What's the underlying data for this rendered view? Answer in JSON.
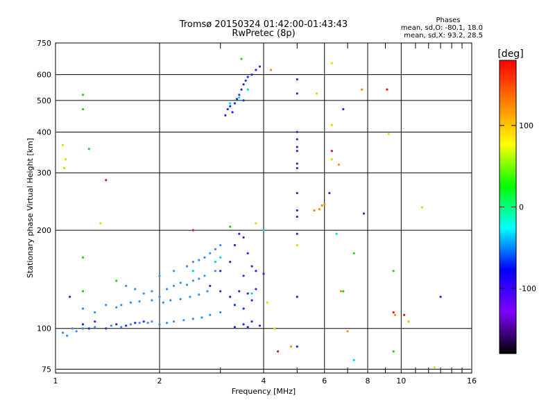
{
  "chart_data": {
    "type": "scatter",
    "title": "Tromsø 20150324 01:42:00-01:43:43",
    "subtitle": "RwPretec (8p)",
    "xlabel": "Frequency [MHz]",
    "ylabel": "Stationary phase Virtual Height [km]",
    "x_scale": "log2",
    "y_scale": "log",
    "xlim": [
      1,
      16
    ],
    "ylim": [
      73,
      750
    ],
    "x_ticks": [
      1,
      2,
      4,
      6,
      8,
      10,
      16
    ],
    "x_minor_ticks": [
      3,
      5,
      7,
      9,
      11,
      12,
      13,
      14,
      15
    ],
    "y_ticks": [
      75,
      100,
      200,
      300,
      400,
      500,
      600,
      750
    ],
    "grid": true,
    "legend": {
      "header": "Phases",
      "line1": "mean, sd,O: -80.1, 18.0",
      "line2": "mean, sd,X:  93.2, 28.5"
    },
    "colorbar": {
      "label": "[deg]",
      "range": [
        -180,
        180
      ],
      "ticks": [
        100,
        0,
        -100
      ],
      "colors": [
        "#ff0000",
        "#ff7f00",
        "#ffff00",
        "#00ff00",
        "#00ffff",
        "#0000ff",
        "#7f00ff",
        "#000000"
      ]
    },
    "series": [
      {
        "color_group": "blue",
        "color": "#1a2cf0",
        "points": [
          [
            3.1,
            450
          ],
          [
            3.15,
            470
          ],
          [
            3.2,
            480
          ],
          [
            3.3,
            490
          ],
          [
            3.35,
            505
          ],
          [
            3.4,
            520
          ],
          [
            3.45,
            540
          ],
          [
            3.5,
            560
          ],
          [
            3.55,
            575
          ],
          [
            3.6,
            590
          ],
          [
            3.7,
            600
          ],
          [
            3.8,
            620
          ],
          [
            3.9,
            635
          ],
          [
            3.25,
            460
          ],
          [
            3.5,
            500
          ],
          [
            5,
            580
          ],
          [
            5,
            525
          ],
          [
            5,
            400
          ],
          [
            5,
            380
          ],
          [
            5,
            360
          ],
          [
            5,
            350
          ],
          [
            5,
            320
          ],
          [
            5,
            310
          ],
          [
            5,
            260
          ],
          [
            5,
            230
          ],
          [
            5,
            220
          ],
          [
            5,
            195
          ],
          [
            5,
            125
          ],
          [
            5,
            88
          ],
          [
            6.2,
            260
          ],
          [
            6.8,
            470
          ],
          [
            7.8,
            225
          ],
          [
            10.5,
            105
          ],
          [
            13,
            125
          ],
          [
            3.4,
            195
          ],
          [
            3.5,
            190
          ],
          [
            3.3,
            180
          ],
          [
            3.6,
            170
          ],
          [
            3.0,
            150
          ],
          [
            3.7,
            155
          ],
          [
            3.2,
            160
          ],
          [
            3.5,
            145
          ],
          [
            3.8,
            150
          ],
          [
            4.0,
            147
          ],
          [
            2.8,
            135
          ],
          [
            3.0,
            130
          ],
          [
            3.2,
            125
          ],
          [
            3.4,
            130
          ],
          [
            3.6,
            128
          ],
          [
            3.8,
            132
          ],
          [
            3.3,
            118
          ],
          [
            3.5,
            115
          ],
          [
            3.7,
            122
          ],
          [
            3.3,
            101
          ],
          [
            3.5,
            103
          ],
          [
            3.7,
            105
          ],
          [
            3.9,
            102
          ],
          [
            3.6,
            101
          ],
          [
            1.1,
            125
          ],
          [
            1.2,
            103
          ],
          [
            1.25,
            100
          ],
          [
            1.3,
            105
          ],
          [
            1.4,
            100
          ],
          [
            1.5,
            103
          ],
          [
            1.6,
            102
          ],
          [
            1.7,
            104
          ],
          [
            1.8,
            105
          ]
        ]
      },
      {
        "color_group": "lightblue",
        "color": "#3a8cf5",
        "points": [
          [
            1.05,
            97
          ],
          [
            1.08,
            95
          ],
          [
            1.12,
            100
          ],
          [
            1.15,
            98
          ],
          [
            1.2,
            100
          ],
          [
            1.3,
            101
          ],
          [
            1.45,
            102
          ],
          [
            1.55,
            101
          ],
          [
            1.65,
            103
          ],
          [
            1.75,
            104
          ],
          [
            1.85,
            104
          ],
          [
            1.9,
            105
          ],
          [
            2.0,
            103
          ],
          [
            2.1,
            104
          ],
          [
            2.2,
            105
          ],
          [
            2.35,
            106
          ],
          [
            2.5,
            107
          ],
          [
            2.65,
            108
          ],
          [
            2.8,
            110
          ],
          [
            3.0,
            112
          ],
          [
            1.6,
            135
          ],
          [
            1.7,
            132
          ],
          [
            1.8,
            128
          ],
          [
            1.9,
            130
          ],
          [
            2.0,
            125
          ],
          [
            2.1,
            132
          ],
          [
            2.2,
            135
          ],
          [
            2.3,
            138
          ],
          [
            2.4,
            136
          ],
          [
            2.5,
            140
          ],
          [
            2.6,
            142
          ],
          [
            2.7,
            145
          ],
          [
            2.9,
            150
          ],
          [
            1.55,
            118
          ],
          [
            1.65,
            120
          ],
          [
            1.75,
            121
          ],
          [
            1.9,
            122
          ],
          [
            2.05,
            120
          ],
          [
            2.15,
            122
          ],
          [
            2.3,
            123
          ],
          [
            2.45,
            125
          ],
          [
            2.6,
            127
          ],
          [
            2.75,
            130
          ],
          [
            1.2,
            115
          ],
          [
            1.3,
            112
          ],
          [
            1.4,
            118
          ],
          [
            1.5,
            116
          ],
          [
            2.0,
            145
          ],
          [
            2.2,
            150
          ],
          [
            2.4,
            155
          ],
          [
            2.6,
            162
          ],
          [
            2.8,
            170
          ],
          [
            2.9,
            175
          ],
          [
            3.0,
            180
          ],
          [
            2.7,
            165
          ],
          [
            2.5,
            160
          ]
        ]
      },
      {
        "color_group": "cyan",
        "color": "#00d8d8",
        "points": [
          [
            3.2,
            490
          ],
          [
            3.4,
            510
          ],
          [
            3.6,
            540
          ],
          [
            2.9,
            160
          ],
          [
            3.0,
            165
          ],
          [
            2.5,
            150
          ],
          [
            4.0,
            200
          ],
          [
            3.7,
            128
          ],
          [
            6.5,
            195
          ],
          [
            7.3,
            80
          ]
        ]
      },
      {
        "color_group": "green",
        "color": "#1cd21c",
        "points": [
          [
            1.2,
            520
          ],
          [
            1.2,
            470
          ],
          [
            1.25,
            355
          ],
          [
            1.2,
            165
          ],
          [
            1.2,
            130
          ],
          [
            1.5,
            140
          ],
          [
            3.2,
            205
          ],
          [
            3.45,
            670
          ],
          [
            6.8,
            130
          ],
          [
            7.3,
            170
          ],
          [
            9.5,
            85
          ],
          [
            9.5,
            150
          ]
        ]
      },
      {
        "color_group": "yellow",
        "color": "#e8d800",
        "points": [
          [
            1.05,
            365
          ],
          [
            1.07,
            330
          ],
          [
            1.06,
            310
          ],
          [
            1.35,
            210
          ],
          [
            4.1,
            120
          ],
          [
            5.0,
            180
          ],
          [
            6.3,
            650
          ],
          [
            6.3,
            420
          ],
          [
            6.3,
            330
          ],
          [
            9.2,
            395
          ],
          [
            10.5,
            105
          ],
          [
            11.5,
            235
          ],
          [
            12.5,
            76
          ],
          [
            3.8,
            210
          ],
          [
            4.3,
            100
          ],
          [
            5.7,
            525
          ]
        ]
      },
      {
        "color_group": "orange",
        "color": "#ff8a00",
        "points": [
          [
            4.2,
            620
          ],
          [
            5.6,
            230
          ],
          [
            5.8,
            232
          ],
          [
            5.9,
            238
          ],
          [
            6.0,
            240
          ],
          [
            6.6,
            318
          ],
          [
            6.7,
            130
          ],
          [
            7.0,
            98
          ],
          [
            7.7,
            540
          ],
          [
            9.6,
            110
          ],
          [
            4.8,
            88
          ]
        ]
      },
      {
        "color_group": "red",
        "color": "#e81010",
        "points": [
          [
            1.4,
            285
          ],
          [
            2.5,
            200
          ],
          [
            4.4,
            85
          ],
          [
            6.3,
            350
          ],
          [
            9.1,
            540
          ],
          [
            9.5,
            112
          ],
          [
            10.2,
            110
          ]
        ]
      }
    ]
  }
}
